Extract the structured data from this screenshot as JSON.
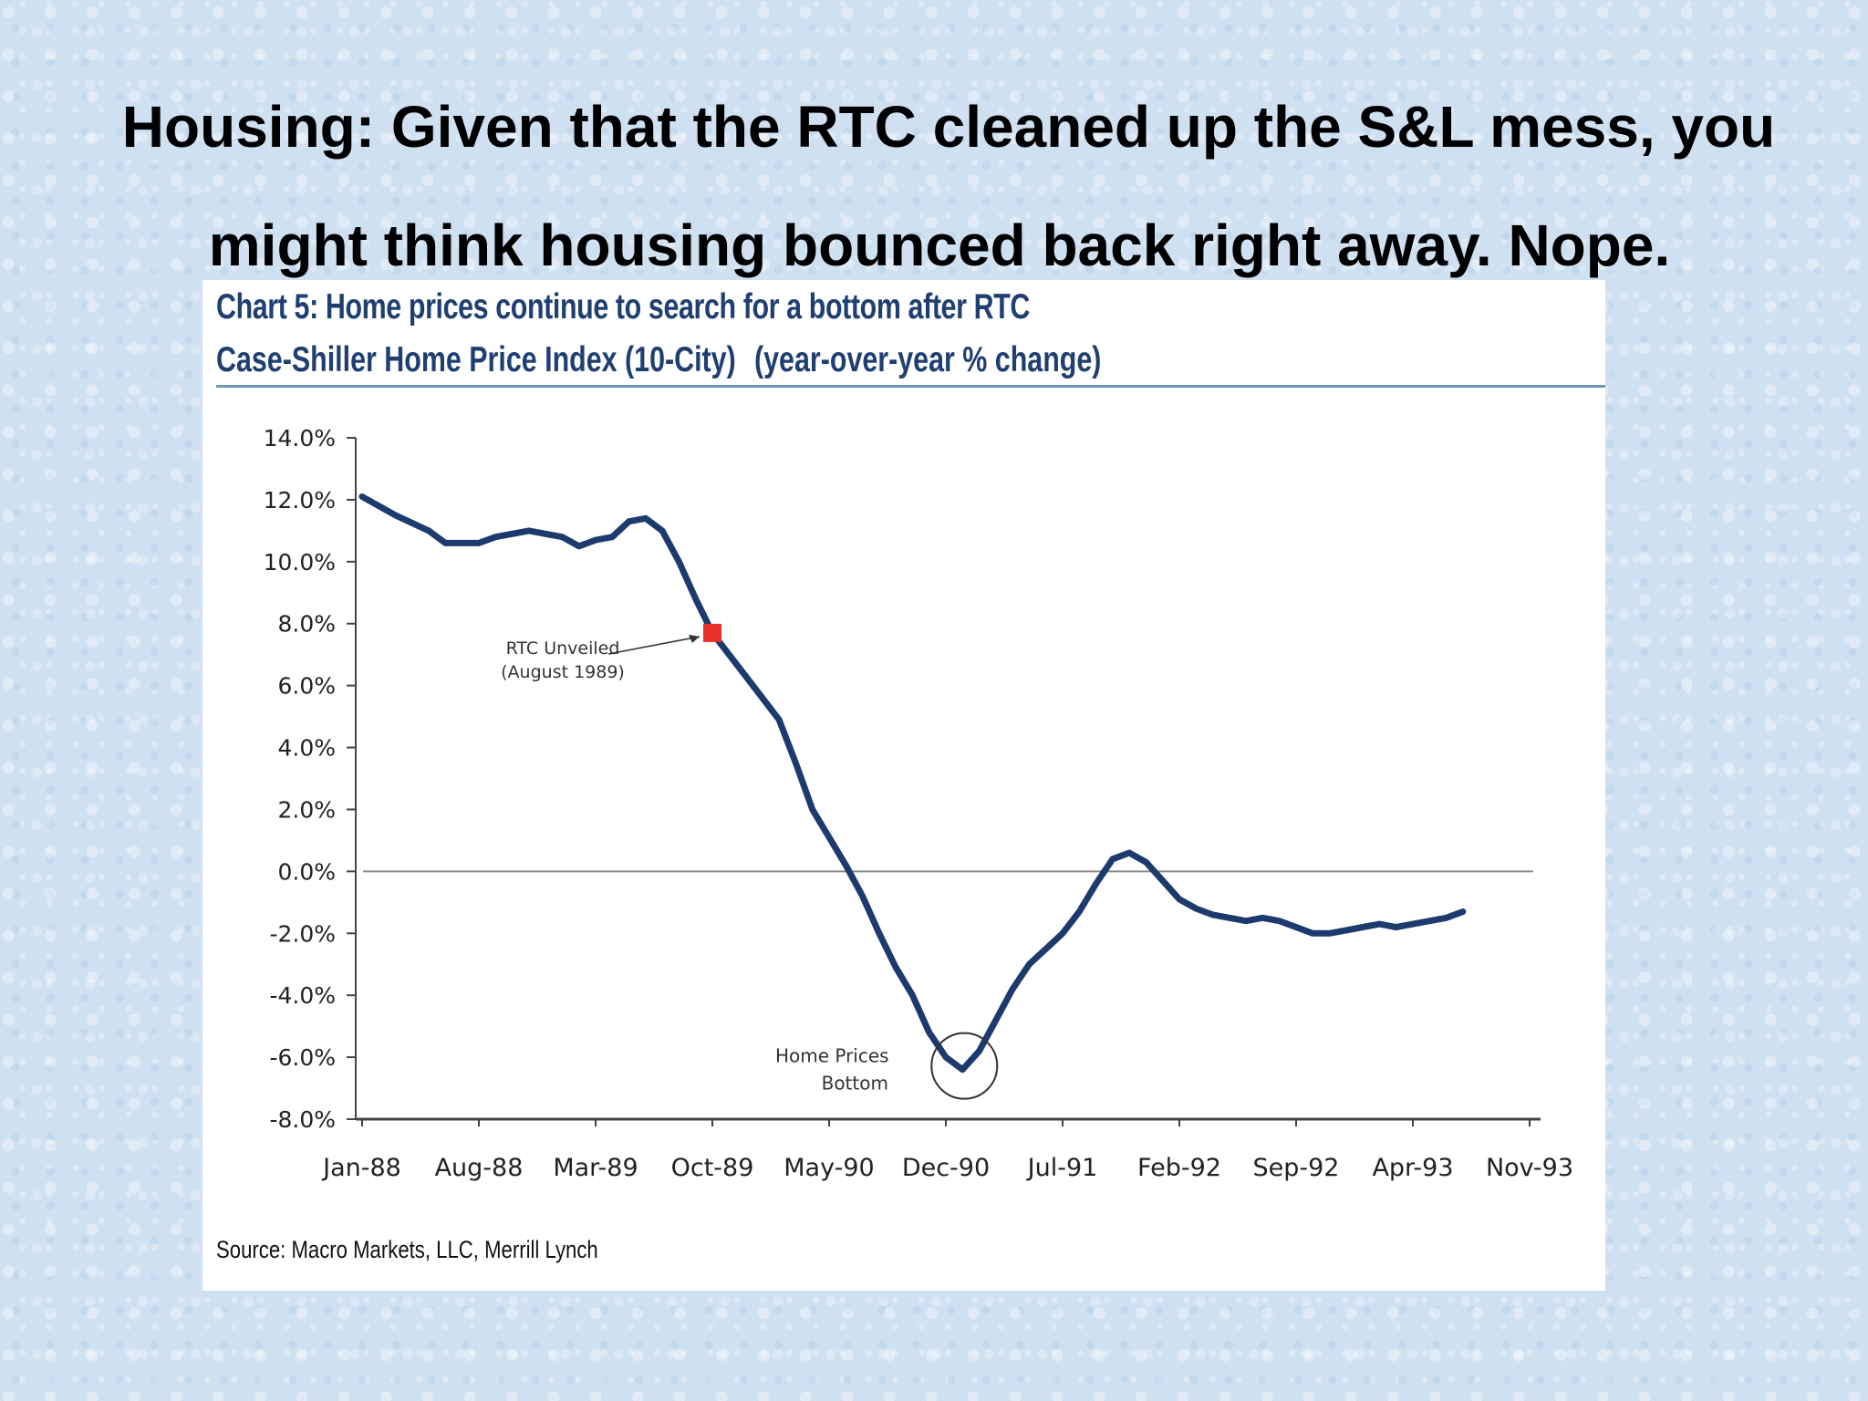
{
  "slide": {
    "title_bold": "Housing:",
    "title_line1_rest": " Given that the RTC cleaned up the S&L mess, you",
    "title_line2": "might think housing bounced back right away. Nope."
  },
  "chart": {
    "title": "Chart 5: Home prices continue to search for a bottom after RTC",
    "subtitle_index": "Case-Shiller Home Price Index (10-City)",
    "subtitle_units": "(year-over-year % change)",
    "source": "Source: Macro Markets, LLC, Merrill Lynch"
  },
  "chart_data": {
    "type": "line",
    "title": "Chart 5: Home prices continue to search for a bottom after RTC",
    "subtitle": "Case-Shiller Home Price Index (10-City) (year-over-year % change)",
    "xlabel": "",
    "ylabel": "",
    "ylim": [
      -8,
      14
    ],
    "yticks": [
      "14.0%",
      "12.0%",
      "10.0%",
      "8.0%",
      "6.0%",
      "4.0%",
      "2.0%",
      "0.0%",
      "-2.0%",
      "-4.0%",
      "-6.0%",
      "-8.0%"
    ],
    "ytick_values": [
      14,
      12,
      10,
      8,
      6,
      4,
      2,
      0,
      -2,
      -4,
      -6,
      -8
    ],
    "xticks": [
      "Jan-88",
      "Aug-88",
      "Mar-89",
      "Oct-89",
      "May-90",
      "Dec-90",
      "Jul-91",
      "Feb-92",
      "Sep-92",
      "Apr-93",
      "Nov-93"
    ],
    "grid": false,
    "zero_line": true,
    "line_color": "#1c3a6e",
    "marker_color": "#e8322b",
    "series": [
      {
        "values": [
          {
            "x": "Jan-88",
            "y": 12.1
          },
          {
            "x": "Mar-88",
            "y": 11.5
          },
          {
            "x": "May-88",
            "y": 11.0
          },
          {
            "x": "Jun-88",
            "y": 10.6
          },
          {
            "x": "Aug-88",
            "y": 10.6
          },
          {
            "x": "Sep-88",
            "y": 10.8
          },
          {
            "x": "Nov-88",
            "y": 11.0
          },
          {
            "x": "Dec-88",
            "y": 10.9
          },
          {
            "x": "Jan-89",
            "y": 10.8
          },
          {
            "x": "Feb-89",
            "y": 10.5
          },
          {
            "x": "Mar-89",
            "y": 10.7
          },
          {
            "x": "Apr-89",
            "y": 10.8
          },
          {
            "x": "May-89",
            "y": 11.3
          },
          {
            "x": "Jun-89",
            "y": 11.4
          },
          {
            "x": "Jul-89",
            "y": 11.0
          },
          {
            "x": "Aug-89",
            "y": 10.0
          },
          {
            "x": "Sep-89",
            "y": 8.8
          },
          {
            "x": "Oct-89",
            "y": 7.7
          },
          {
            "x": "Dec-89",
            "y": 6.3
          },
          {
            "x": "Feb-90",
            "y": 4.9
          },
          {
            "x": "Mar-90",
            "y": 3.5
          },
          {
            "x": "Apr-90",
            "y": 2.0
          },
          {
            "x": "May-90",
            "y": 1.1
          },
          {
            "x": "Jun-90",
            "y": 0.2
          },
          {
            "x": "Jul-90",
            "y": -0.8
          },
          {
            "x": "Aug-90",
            "y": -2.0
          },
          {
            "x": "Sep-90",
            "y": -3.1
          },
          {
            "x": "Oct-90",
            "y": -4.0
          },
          {
            "x": "Nov-90",
            "y": -5.2
          },
          {
            "x": "Dec-90",
            "y": -6.0
          },
          {
            "x": "Jan-91",
            "y": -6.4
          },
          {
            "x": "Feb-91",
            "y": -5.8
          },
          {
            "x": "Mar-91",
            "y": -4.8
          },
          {
            "x": "Apr-91",
            "y": -3.8
          },
          {
            "x": "May-91",
            "y": -3.0
          },
          {
            "x": "Jun-91",
            "y": -2.5
          },
          {
            "x": "Jul-91",
            "y": -2.0
          },
          {
            "x": "Aug-91",
            "y": -1.3
          },
          {
            "x": "Sep-91",
            "y": -0.4
          },
          {
            "x": "Oct-91",
            "y": 0.4
          },
          {
            "x": "Nov-91",
            "y": 0.6
          },
          {
            "x": "Dec-91",
            "y": 0.3
          },
          {
            "x": "Jan-92",
            "y": -0.3
          },
          {
            "x": "Feb-92",
            "y": -0.9
          },
          {
            "x": "Mar-92",
            "y": -1.2
          },
          {
            "x": "Apr-92",
            "y": -1.4
          },
          {
            "x": "May-92",
            "y": -1.5
          },
          {
            "x": "Jun-92",
            "y": -1.6
          },
          {
            "x": "Jul-92",
            "y": -1.5
          },
          {
            "x": "Aug-92",
            "y": -1.6
          },
          {
            "x": "Sep-92",
            "y": -1.8
          },
          {
            "x": "Oct-92",
            "y": -2.0
          },
          {
            "x": "Nov-92",
            "y": -2.0
          },
          {
            "x": "Dec-92",
            "y": -1.9
          },
          {
            "x": "Jan-93",
            "y": -1.8
          },
          {
            "x": "Feb-93",
            "y": -1.7
          },
          {
            "x": "Mar-93",
            "y": -1.8
          },
          {
            "x": "Apr-93",
            "y": -1.7
          },
          {
            "x": "May-93",
            "y": -1.6
          },
          {
            "x": "Jun-93",
            "y": -1.5
          },
          {
            "x": "Jul-93",
            "y": -1.3
          }
        ]
      }
    ],
    "markers": [
      {
        "x": "Oct-89",
        "y": 7.7,
        "label": "RTC Unveiled (August 1989)"
      }
    ],
    "annotations": [
      {
        "text_line1": "RTC Unveiled",
        "text_line2": "(August 1989)",
        "target": "RTC marker"
      },
      {
        "text_line1": "Home Prices",
        "text_line2": "Bottom",
        "target": "trough circle at -6.4%"
      }
    ]
  }
}
